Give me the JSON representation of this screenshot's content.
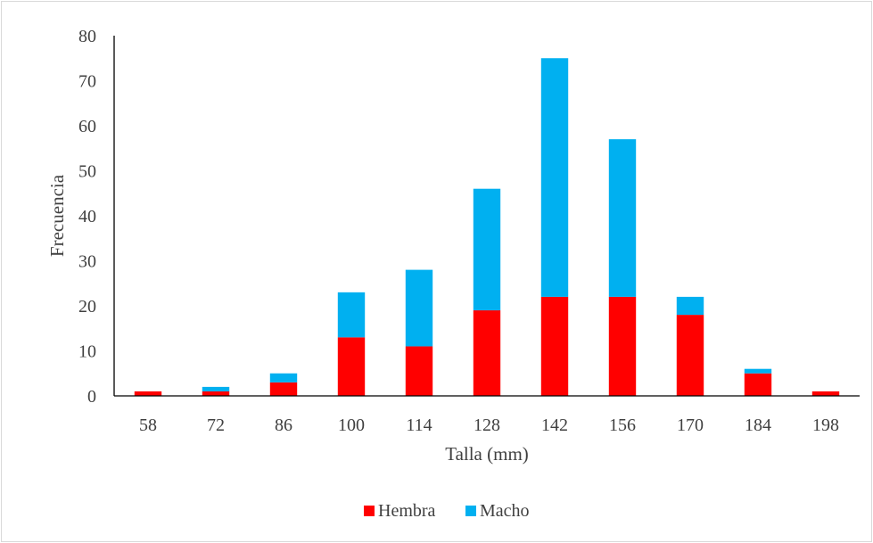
{
  "chart_data": {
    "type": "bar",
    "stacked": true,
    "title": "",
    "xlabel": "Talla (mm)",
    "ylabel": "Frecuencia",
    "ylim": [
      0,
      80
    ],
    "yticks": [
      0,
      10,
      20,
      30,
      40,
      50,
      60,
      70,
      80
    ],
    "categories": [
      "58",
      "72",
      "86",
      "100",
      "114",
      "128",
      "142",
      "156",
      "170",
      "184",
      "198"
    ],
    "series": [
      {
        "name": "Hembra",
        "color": "#ff0000",
        "values": [
          1,
          1,
          3,
          13,
          11,
          19,
          22,
          22,
          18,
          5,
          1
        ]
      },
      {
        "name": "Macho",
        "color": "#00b0f0",
        "values": [
          0,
          1,
          2,
          10,
          17,
          27,
          53,
          35,
          4,
          1,
          0
        ]
      }
    ],
    "grid": false,
    "legend_position": "bottom"
  }
}
